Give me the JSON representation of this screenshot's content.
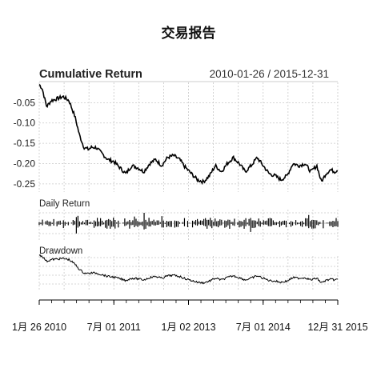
{
  "chart_data": {
    "type": "line",
    "title": "交易报告",
    "panels": [
      {
        "name": "Cumulative Return",
        "title": "Cumulative Return",
        "range_label": "2010-01-26 / 2015-12-31",
        "ylim": [
          -0.27,
          0.0
        ],
        "yticks": [
          "-0.05",
          "-0.10",
          "-0.15",
          "-0.20",
          "-0.25"
        ],
        "ytick_values": [
          -0.05,
          -0.1,
          -0.15,
          -0.2,
          -0.25
        ],
        "series": [
          {
            "x": [
              0.0,
              0.01,
              0.025,
              0.04,
              0.06,
              0.08,
              0.1,
              0.12,
              0.135,
              0.15,
              0.165,
              0.175,
              0.19,
              0.21,
              0.23,
              0.25,
              0.27,
              0.29,
              0.31,
              0.33,
              0.35,
              0.37,
              0.39,
              0.41,
              0.43,
              0.45,
              0.47,
              0.49,
              0.51,
              0.53,
              0.55,
              0.57,
              0.59,
              0.61,
              0.63,
              0.65,
              0.67,
              0.69,
              0.71,
              0.73,
              0.75,
              0.77,
              0.79,
              0.81,
              0.83,
              0.85,
              0.87,
              0.89,
              0.91,
              0.93,
              0.945,
              0.96,
              0.975,
              0.99,
              1.0
            ],
            "values": [
              -0.005,
              -0.015,
              -0.06,
              -0.045,
              -0.04,
              -0.035,
              -0.045,
              -0.085,
              -0.13,
              -0.16,
              -0.165,
              -0.16,
              -0.16,
              -0.175,
              -0.19,
              -0.195,
              -0.21,
              -0.225,
              -0.205,
              -0.21,
              -0.22,
              -0.2,
              -0.19,
              -0.205,
              -0.185,
              -0.18,
              -0.19,
              -0.21,
              -0.225,
              -0.24,
              -0.245,
              -0.23,
              -0.205,
              -0.22,
              -0.2,
              -0.185,
              -0.2,
              -0.22,
              -0.205,
              -0.185,
              -0.205,
              -0.225,
              -0.23,
              -0.24,
              -0.23,
              -0.2,
              -0.205,
              -0.2,
              -0.22,
              -0.205,
              -0.245,
              -0.225,
              -0.215,
              -0.22,
              -0.215
            ]
          }
        ]
      },
      {
        "name": "Daily Return",
        "title": "Daily Return"
      },
      {
        "name": "Drawdown",
        "title": "Drawdown"
      }
    ],
    "x_range": [
      "2010-01-26",
      "2015-12-31"
    ],
    "xticks": [
      "1月 26 2010",
      "7月 01 2011",
      "1月 02 2013",
      "7月 01 2014",
      "12月 31 2015"
    ],
    "xtick_positions": [
      0.0,
      0.25,
      0.5,
      0.75,
      1.0
    ],
    "grid": true,
    "colors": {
      "line": "#000000",
      "grid": "#c8c8c8"
    }
  }
}
